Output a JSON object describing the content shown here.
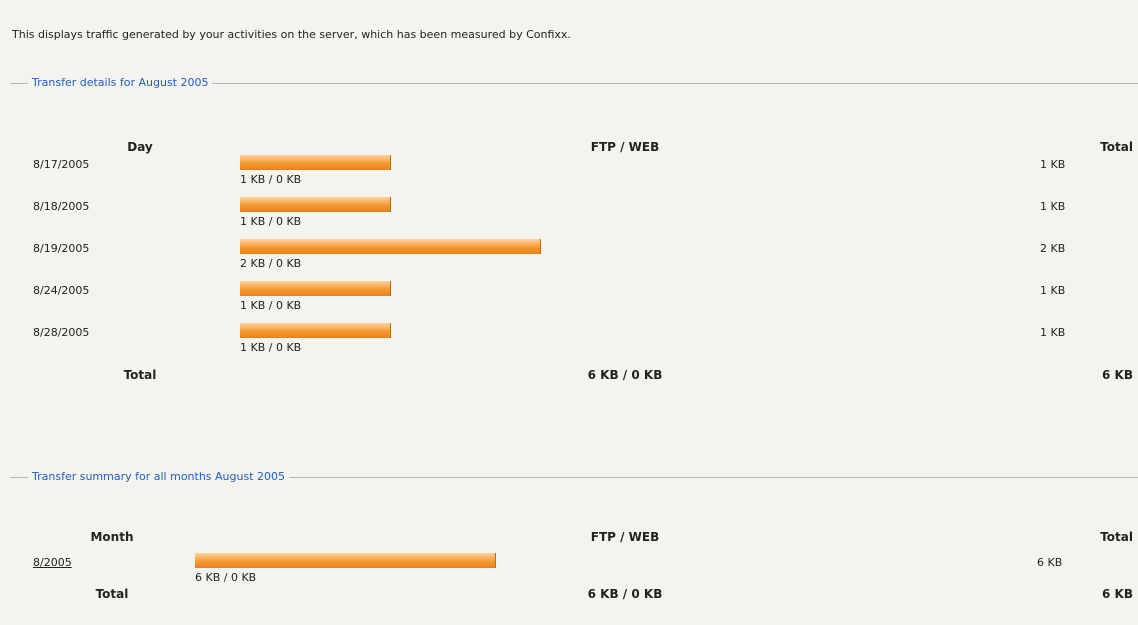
{
  "intro": "This displays traffic generated by your activities on the server, which has been measured by Confixx.",
  "sections": [
    {
      "legend": "Transfer details for August 2005",
      "headers": {
        "first": "Day",
        "transfer": "FTP / WEB",
        "total": "Total"
      },
      "rows": [
        {
          "label": "8/17/2005",
          "ftp_kb": 1,
          "transfer": "1 KB / 0 KB",
          "total": "1 KB"
        },
        {
          "label": "8/18/2005",
          "ftp_kb": 1,
          "transfer": "1 KB / 0 KB",
          "total": "1 KB"
        },
        {
          "label": "8/19/2005",
          "ftp_kb": 2,
          "transfer": "2 KB / 0 KB",
          "total": "2 KB"
        },
        {
          "label": "8/24/2005",
          "ftp_kb": 1,
          "transfer": "1 KB / 0 KB",
          "total": "1 KB"
        },
        {
          "label": "8/28/2005",
          "ftp_kb": 1,
          "transfer": "1 KB / 0 KB",
          "total": "1 KB"
        }
      ],
      "footer": {
        "label": "Total",
        "transfer": "6 KB / 0 KB",
        "total": "6 KB"
      }
    },
    {
      "legend": "Transfer summary for all months August 2005",
      "headers": {
        "first": "Month",
        "transfer": "FTP / WEB",
        "total": "Total"
      },
      "rows": [
        {
          "label": "8/2005",
          "ftp_kb": 6,
          "transfer": "6 KB / 0 KB",
          "total": "6 KB"
        }
      ],
      "footer": {
        "label": "Total",
        "transfer": "6 KB / 0 KB",
        "total": "6 KB"
      }
    }
  ]
}
